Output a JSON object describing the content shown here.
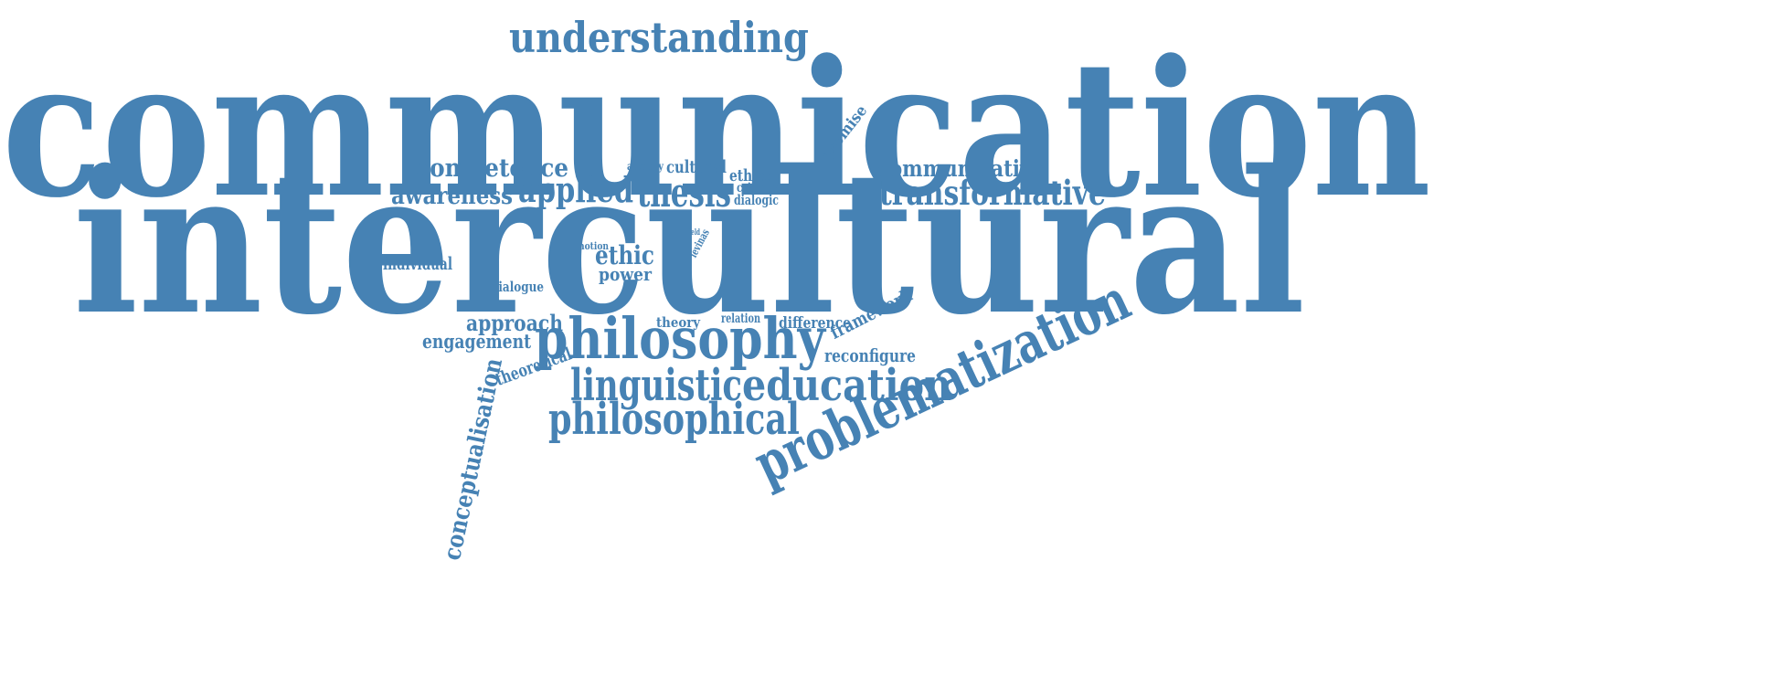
{
  "color": "#4682B4",
  "words": [
    {
      "id": "communication",
      "text": "communication"
    },
    {
      "id": "intercultural",
      "text": "intercultural"
    },
    {
      "id": "understanding",
      "text": "understanding"
    },
    {
      "id": "competence",
      "text": "competence"
    },
    {
      "id": "alterity",
      "text": "alterity"
    },
    {
      "id": "cultural",
      "text": "cultural"
    },
    {
      "id": "ethical",
      "text": "ethical"
    },
    {
      "id": "critique",
      "text": "critique"
    },
    {
      "id": "dialogic",
      "text": "dialogic"
    },
    {
      "id": "promise",
      "text": "promise"
    },
    {
      "id": "communicative",
      "text": "communicative"
    },
    {
      "id": "awareness",
      "text": "awareness"
    },
    {
      "id": "applied",
      "text": "applied"
    },
    {
      "id": "thesis",
      "text": "thesis"
    },
    {
      "id": "transformative",
      "text": "transformative"
    },
    {
      "id": "notion",
      "text": "notion"
    },
    {
      "id": "field",
      "text": "field"
    },
    {
      "id": "levinas",
      "text": "levinas"
    },
    {
      "id": "ethic",
      "text": "ethic"
    },
    {
      "id": "power",
      "text": "power"
    },
    {
      "id": "individual",
      "text": "individual"
    },
    {
      "id": "dialogue",
      "text": "dialogue"
    },
    {
      "id": "approach",
      "text": "approach"
    },
    {
      "id": "theory",
      "text": "theory"
    },
    {
      "id": "relation",
      "text": "relation"
    },
    {
      "id": "difference",
      "text": "difference"
    },
    {
      "id": "framework",
      "text": "framework"
    },
    {
      "id": "engagement",
      "text": "engagement"
    },
    {
      "id": "philosophy",
      "text": "philosophy"
    },
    {
      "id": "reconfigure",
      "text": "reconfigure"
    },
    {
      "id": "theoretical",
      "text": "theoretical"
    },
    {
      "id": "conceptualisation",
      "text": "conceptualisation"
    },
    {
      "id": "linguistic",
      "text": "linguistic"
    },
    {
      "id": "education",
      "text": "education"
    },
    {
      "id": "problematization",
      "text": "problematization"
    },
    {
      "id": "philosophical",
      "text": "philosophical"
    }
  ]
}
